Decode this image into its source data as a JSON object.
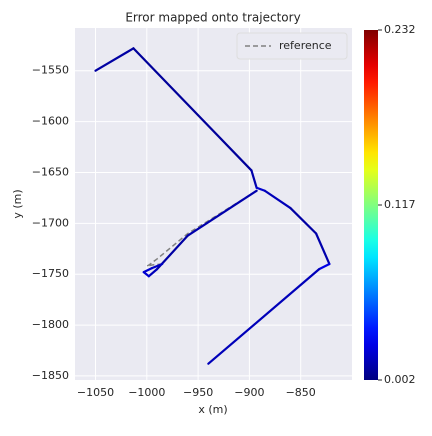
{
  "chart_data": {
    "type": "trajectory",
    "title": "Error mapped onto trajectory",
    "x_label": "x (m)",
    "y_label": "y (m)",
    "xlim": [
      -1070,
      -800
    ],
    "ylim": [
      -1854,
      -1508
    ],
    "xticks": [
      {
        "value": -1050,
        "label": "−1050"
      },
      {
        "value": -1000,
        "label": "−1000"
      },
      {
        "value": -950,
        "label": "−950"
      },
      {
        "value": -900,
        "label": "−900"
      },
      {
        "value": -850,
        "label": "−850"
      }
    ],
    "yticks": [
      {
        "value": -1550,
        "label": "−1550"
      },
      {
        "value": -1600,
        "label": "−1600"
      },
      {
        "value": -1650,
        "label": "−1650"
      },
      {
        "value": -1700,
        "label": "−1700"
      },
      {
        "value": -1750,
        "label": "−1750"
      },
      {
        "value": -1800,
        "label": "−1800"
      },
      {
        "value": -1850,
        "label": "−1850"
      }
    ],
    "grid": true,
    "legend_position": "upper right",
    "series": [
      {
        "name": "reference",
        "color": "#808080",
        "dashed": true,
        "x": [
          -1050,
          -1013,
          -898,
          -893,
          -885,
          -860,
          -835,
          -822,
          -832,
          -940,
          null,
          -893,
          -960,
          -990,
          -998,
          -1000,
          -995,
          -985
        ],
        "y": [
          -1550,
          -1528,
          -1648,
          -1665,
          -1668,
          -1685,
          -1710,
          -1740,
          -1745,
          -1838,
          null,
          -1668,
          -1710,
          -1735,
          -1741,
          -1742,
          -1741,
          -1740
        ]
      },
      {
        "colormap": "jet",
        "x": [
          -1050,
          -1013,
          -898,
          -893,
          -885,
          -860,
          -835,
          -822,
          -832,
          -940,
          null,
          -893,
          -960,
          -990,
          -998,
          -1003,
          -995,
          -985
        ],
        "y": [
          -1550,
          -1528,
          -1648,
          -1665,
          -1668,
          -1685,
          -1710,
          -1740,
          -1745,
          -1838,
          null,
          -1668,
          -1712,
          -1745,
          -1752,
          -1748,
          -1744,
          -1740
        ],
        "errors": [
          0.01,
          0.008,
          0.012,
          0.02,
          0.015,
          0.01,
          0.012,
          0.025,
          0.015,
          0.01,
          null,
          0.012,
          0.01,
          0.015,
          0.02,
          0.02,
          0.018,
          0.015
        ]
      }
    ],
    "colorbar": {
      "clim": [
        0.002,
        0.232
      ],
      "ticks": [
        0.002,
        0.117,
        0.232
      ]
    }
  }
}
